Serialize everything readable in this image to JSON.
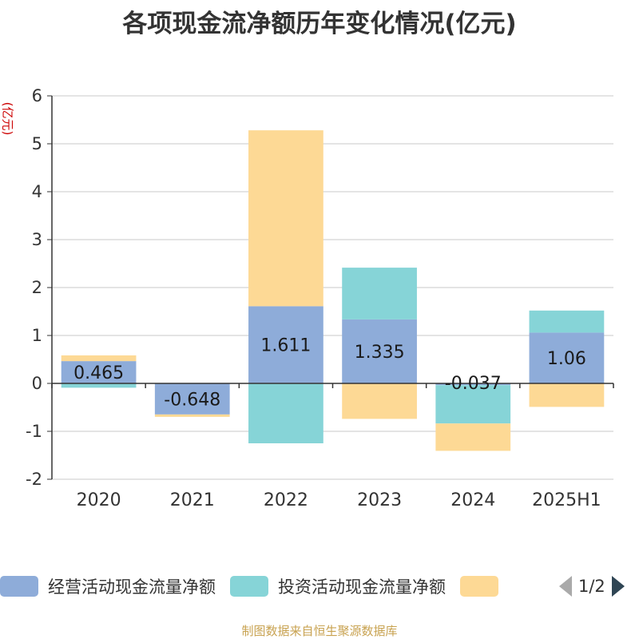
{
  "chart_data": {
    "type": "bar",
    "stacked": true,
    "title": "各项现金流净额历年变化情况(亿元)",
    "ylabel": "(亿元)",
    "categories": [
      "2020",
      "2021",
      "2022",
      "2023",
      "2024",
      "2025H1"
    ],
    "ylim": [
      -2,
      6
    ],
    "yticks": [
      -2,
      -1,
      0,
      1,
      2,
      3,
      4,
      5,
      6
    ],
    "grid": true,
    "series": [
      {
        "name": "经营活动现金流量净额",
        "color": "#8eacd9",
        "values": [
          0.465,
          -0.648,
          1.611,
          1.335,
          -0.037,
          1.06
        ],
        "labels": [
          "0.465",
          "-0.648",
          "1.611",
          "1.335",
          "-0.037",
          "1.06"
        ]
      },
      {
        "name": "投资活动现金流量净额",
        "color": "#86d4d7",
        "values": [
          -0.09,
          0.0,
          -1.25,
          1.08,
          -0.8,
          0.46
        ]
      },
      {
        "name": "",
        "color": "#fdd995",
        "values": [
          0.12,
          -0.05,
          3.67,
          -0.74,
          -0.57,
          -0.49
        ]
      }
    ]
  },
  "legend": {
    "page": "1/2"
  },
  "source": "制图数据来自恒生聚源数据库"
}
